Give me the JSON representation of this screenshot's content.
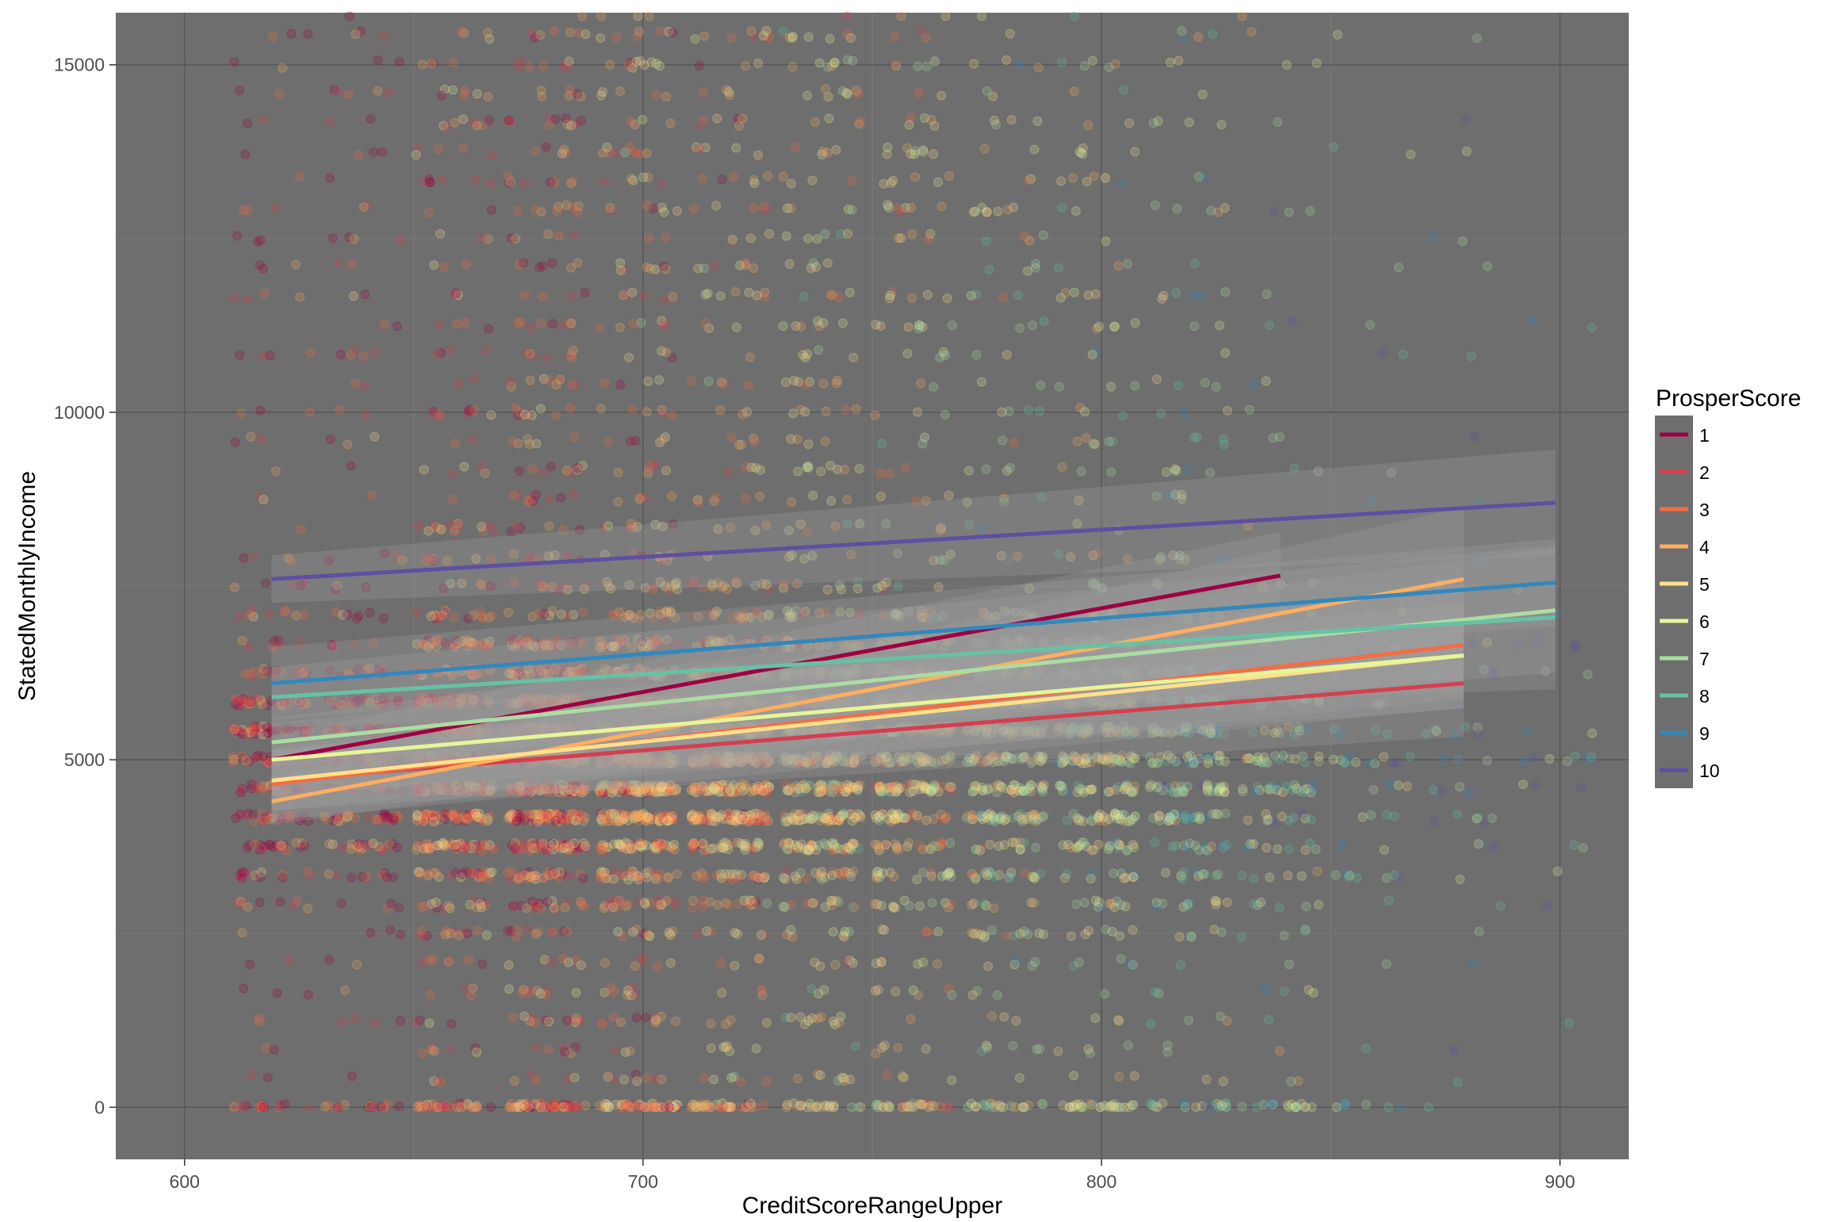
{
  "chart_data": {
    "type": "scatter",
    "title": "",
    "xlabel": "CreditScoreRangeUpper",
    "ylabel": "StatedMonthlyIncome",
    "xlim": [
      585,
      915
    ],
    "ylim": [
      -750,
      15750
    ],
    "x_ticks": [
      600,
      700,
      800,
      900
    ],
    "x_tick_labels": [
      "600",
      "700",
      "800",
      "900"
    ],
    "y_ticks": [
      0,
      5000,
      10000,
      15000
    ],
    "y_tick_labels": [
      "0",
      "5000",
      "10000",
      "15000"
    ],
    "grid": true,
    "legend": {
      "title": "ProsperScore",
      "position": "right"
    },
    "x_columns": [
      619,
      639,
      659,
      679,
      699,
      719,
      739,
      759,
      779,
      799,
      819,
      839,
      859,
      879,
      899
    ],
    "column_density": [
      0.35,
      0.32,
      0.75,
      1.0,
      0.95,
      0.8,
      0.7,
      0.55,
      0.45,
      0.45,
      0.38,
      0.18,
      0.07,
      0.06,
      0.03
    ],
    "series": [
      {
        "name": "1",
        "color": "#9E0142",
        "x": [
          619,
          839
        ],
        "y": [
          5000,
          7650
        ]
      },
      {
        "name": "2",
        "color": "#D53E4F",
        "x": [
          619,
          879
        ],
        "y": [
          4700,
          6100
        ]
      },
      {
        "name": "3",
        "color": "#F46D43",
        "x": [
          619,
          879
        ],
        "y": [
          4650,
          6650
        ]
      },
      {
        "name": "4",
        "color": "#FDAE61",
        "x": [
          619,
          879
        ],
        "y": [
          4400,
          7600
        ]
      },
      {
        "name": "5",
        "color": "#FEE08B",
        "x": [
          619,
          879
        ],
        "y": [
          4700,
          6500
        ]
      },
      {
        "name": "6",
        "color": "#E6F598",
        "x": [
          619,
          879
        ],
        "y": [
          5000,
          6500
        ]
      },
      {
        "name": "7",
        "color": "#ABDDA4",
        "x": [
          619,
          899
        ],
        "y": [
          5250,
          7150
        ]
      },
      {
        "name": "8",
        "color": "#66C2A5",
        "x": [
          619,
          899
        ],
        "y": [
          5900,
          7050
        ]
      },
      {
        "name": "9",
        "color": "#3288BD",
        "x": [
          619,
          899
        ],
        "y": [
          6100,
          7550
        ]
      },
      {
        "name": "10",
        "color": "#5E4FA2",
        "x": [
          619,
          899
        ],
        "y": [
          7600,
          8700
        ]
      }
    ]
  }
}
